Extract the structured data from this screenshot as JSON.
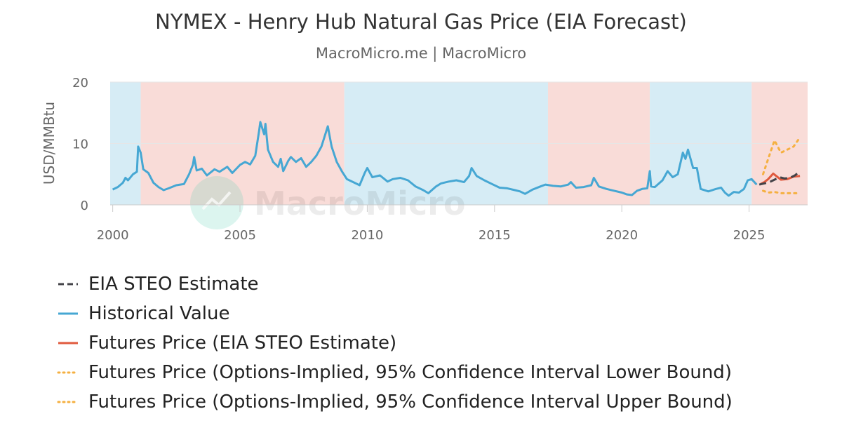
{
  "title": "NYMEX - Henry Hub Natural Gas Price (EIA Forecast)",
  "subtitle": "MacroMicro.me | MacroMicro",
  "watermark": "MacroMicro",
  "chart_data": {
    "type": "line",
    "title": "NYMEX - Henry Hub Natural Gas Price (EIA Forecast)",
    "subtitle": "MacroMicro.me | MacroMicro",
    "ylabel": "USD/MMBtu",
    "xlabel": "",
    "ylim": [
      0,
      20
    ],
    "xlim": [
      1999.9,
      2027.3
    ],
    "y_ticks": [
      "0",
      "10",
      "20"
    ],
    "x_ticks": [
      "2000",
      "2005",
      "2010",
      "2015",
      "2020",
      "2025"
    ],
    "grid": true,
    "legend_position": "bottom-left",
    "background_bands": [
      {
        "from": 1999.9,
        "to": 2001.1,
        "color": "#d6ecf5"
      },
      {
        "from": 2001.1,
        "to": 2009.1,
        "color": "#f9dcd8"
      },
      {
        "from": 2009.1,
        "to": 2017.1,
        "color": "#d6ecf5"
      },
      {
        "from": 2017.1,
        "to": 2021.1,
        "color": "#f9dcd8"
      },
      {
        "from": 2021.1,
        "to": 2025.1,
        "color": "#d6ecf5"
      },
      {
        "from": 2025.1,
        "to": 2027.3,
        "color": "#f9dcd8"
      }
    ],
    "series": [
      {
        "name": "EIA STEO Estimate",
        "color": "#434348",
        "style": "dashed",
        "points": [
          [
            2025.4,
            3.3
          ],
          [
            2025.6,
            3.5
          ],
          [
            2025.8,
            3.7
          ],
          [
            2026.0,
            4.1
          ],
          [
            2026.2,
            4.5
          ],
          [
            2026.4,
            4.3
          ],
          [
            2026.6,
            4.4
          ],
          [
            2026.8,
            4.8
          ],
          [
            2027.0,
            5.5
          ]
        ]
      },
      {
        "name": "Historical Value",
        "color": "#46a7d3",
        "style": "solid",
        "points": [
          [
            2000.0,
            2.5
          ],
          [
            2000.2,
            2.9
          ],
          [
            2000.4,
            3.6
          ],
          [
            2000.5,
            4.4
          ],
          [
            2000.6,
            4.0
          ],
          [
            2000.8,
            5.0
          ],
          [
            2000.95,
            5.4
          ],
          [
            2001.0,
            9.5
          ],
          [
            2001.1,
            8.5
          ],
          [
            2001.2,
            5.8
          ],
          [
            2001.4,
            5.2
          ],
          [
            2001.6,
            3.6
          ],
          [
            2001.8,
            2.9
          ],
          [
            2002.0,
            2.4
          ],
          [
            2002.2,
            2.7
          ],
          [
            2002.5,
            3.2
          ],
          [
            2002.8,
            3.4
          ],
          [
            2003.0,
            5.0
          ],
          [
            2003.15,
            6.5
          ],
          [
            2003.2,
            7.8
          ],
          [
            2003.3,
            5.6
          ],
          [
            2003.5,
            5.9
          ],
          [
            2003.7,
            4.8
          ],
          [
            2004.0,
            5.8
          ],
          [
            2004.2,
            5.4
          ],
          [
            2004.5,
            6.2
          ],
          [
            2004.7,
            5.2
          ],
          [
            2005.0,
            6.5
          ],
          [
            2005.2,
            7.0
          ],
          [
            2005.4,
            6.6
          ],
          [
            2005.6,
            8.0
          ],
          [
            2005.75,
            12.0
          ],
          [
            2005.8,
            13.5
          ],
          [
            2005.95,
            11.5
          ],
          [
            2006.0,
            13.2
          ],
          [
            2006.1,
            9.0
          ],
          [
            2006.3,
            7.0
          ],
          [
            2006.5,
            6.2
          ],
          [
            2006.6,
            7.5
          ],
          [
            2006.7,
            5.5
          ],
          [
            2006.9,
            7.2
          ],
          [
            2007.0,
            7.8
          ],
          [
            2007.2,
            7.0
          ],
          [
            2007.4,
            7.6
          ],
          [
            2007.6,
            6.2
          ],
          [
            2007.8,
            7.0
          ],
          [
            2008.0,
            8.0
          ],
          [
            2008.2,
            9.5
          ],
          [
            2008.45,
            12.8
          ],
          [
            2008.6,
            9.5
          ],
          [
            2008.8,
            7.0
          ],
          [
            2009.0,
            5.5
          ],
          [
            2009.2,
            4.2
          ],
          [
            2009.5,
            3.6
          ],
          [
            2009.7,
            3.2
          ],
          [
            2009.9,
            5.2
          ],
          [
            2010.0,
            6.0
          ],
          [
            2010.2,
            4.5
          ],
          [
            2010.5,
            4.8
          ],
          [
            2010.8,
            3.8
          ],
          [
            2011.0,
            4.2
          ],
          [
            2011.3,
            4.4
          ],
          [
            2011.6,
            4.0
          ],
          [
            2011.9,
            3.0
          ],
          [
            2012.2,
            2.4
          ],
          [
            2012.4,
            1.9
          ],
          [
            2012.7,
            3.0
          ],
          [
            2012.9,
            3.5
          ],
          [
            2013.2,
            3.8
          ],
          [
            2013.5,
            4.0
          ],
          [
            2013.8,
            3.7
          ],
          [
            2014.0,
            4.7
          ],
          [
            2014.1,
            6.0
          ],
          [
            2014.3,
            4.7
          ],
          [
            2014.6,
            4.0
          ],
          [
            2014.9,
            3.4
          ],
          [
            2015.2,
            2.8
          ],
          [
            2015.5,
            2.7
          ],
          [
            2015.8,
            2.4
          ],
          [
            2016.0,
            2.2
          ],
          [
            2016.2,
            1.8
          ],
          [
            2016.5,
            2.5
          ],
          [
            2016.8,
            3.0
          ],
          [
            2017.0,
            3.3
          ],
          [
            2017.3,
            3.1
          ],
          [
            2017.6,
            3.0
          ],
          [
            2017.9,
            3.3
          ],
          [
            2018.0,
            3.7
          ],
          [
            2018.2,
            2.8
          ],
          [
            2018.5,
            2.9
          ],
          [
            2018.8,
            3.2
          ],
          [
            2018.9,
            4.4
          ],
          [
            2019.1,
            3.0
          ],
          [
            2019.4,
            2.6
          ],
          [
            2019.7,
            2.3
          ],
          [
            2020.0,
            2.0
          ],
          [
            2020.2,
            1.7
          ],
          [
            2020.4,
            1.6
          ],
          [
            2020.6,
            2.3
          ],
          [
            2020.8,
            2.6
          ],
          [
            2021.0,
            2.7
          ],
          [
            2021.1,
            5.5
          ],
          [
            2021.15,
            3.0
          ],
          [
            2021.3,
            2.9
          ],
          [
            2021.6,
            4.0
          ],
          [
            2021.8,
            5.5
          ],
          [
            2022.0,
            4.5
          ],
          [
            2022.2,
            5.0
          ],
          [
            2022.4,
            8.5
          ],
          [
            2022.5,
            7.5
          ],
          [
            2022.6,
            9.0
          ],
          [
            2022.8,
            6.0
          ],
          [
            2022.95,
            6.0
          ],
          [
            2023.1,
            2.6
          ],
          [
            2023.4,
            2.2
          ],
          [
            2023.7,
            2.6
          ],
          [
            2023.9,
            2.8
          ],
          [
            2024.05,
            2.0
          ],
          [
            2024.2,
            1.5
          ],
          [
            2024.4,
            2.1
          ],
          [
            2024.6,
            2.0
          ],
          [
            2024.8,
            2.6
          ],
          [
            2024.95,
            4.0
          ],
          [
            2025.1,
            4.2
          ],
          [
            2025.3,
            3.3
          ]
        ]
      },
      {
        "name": "Futures Price (EIA STEO Estimate)",
        "color": "#e05a3e",
        "style": "solid",
        "points": [
          [
            2025.45,
            3.4
          ],
          [
            2025.6,
            3.7
          ],
          [
            2025.75,
            4.2
          ],
          [
            2025.95,
            5.1
          ],
          [
            2026.1,
            4.6
          ],
          [
            2026.25,
            4.1
          ],
          [
            2026.5,
            4.2
          ],
          [
            2026.75,
            4.6
          ],
          [
            2027.0,
            4.7
          ]
        ]
      },
      {
        "name": "Futures Price (Options-Implied, 95% Confidence Interval Lower Bound)",
        "color": "#f5b041",
        "style": "dotted",
        "points": [
          [
            2025.55,
            2.3
          ],
          [
            2025.75,
            2.0
          ],
          [
            2026.0,
            2.1
          ],
          [
            2026.25,
            1.9
          ],
          [
            2026.5,
            1.9
          ],
          [
            2026.75,
            1.9
          ],
          [
            2027.0,
            1.9
          ]
        ]
      },
      {
        "name": "Futures Price (Options-Implied, 95% Confidence Interval Upper Bound)",
        "color": "#f5b041",
        "style": "dotted",
        "points": [
          [
            2025.55,
            5.0
          ],
          [
            2025.75,
            7.5
          ],
          [
            2026.0,
            10.5
          ],
          [
            2026.25,
            8.5
          ],
          [
            2026.5,
            9.0
          ],
          [
            2026.75,
            9.5
          ],
          [
            2027.0,
            11.0
          ]
        ]
      }
    ]
  }
}
